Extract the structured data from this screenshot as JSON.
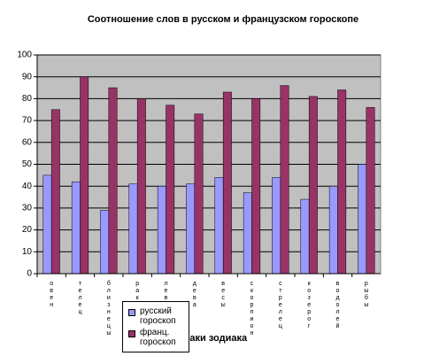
{
  "chart_data": {
    "type": "bar",
    "title": "Соотношение слов в русском и французском гороскопе",
    "x_label": "Знаки зодиака",
    "categories": [
      "овен",
      "телец",
      "близнецы",
      "рак",
      "лев",
      "дева",
      "весы",
      "скорпион",
      "стрелец",
      "козерог",
      "водолей",
      "рыбы"
    ],
    "series": [
      {
        "name": "русский гороскоп",
        "color": "#9999ff",
        "values": [
          45,
          42,
          29,
          41,
          40,
          41,
          44,
          37,
          44,
          34,
          40,
          50
        ]
      },
      {
        "name": "франц. гороскоп",
        "color": "#993366",
        "values": [
          75,
          90,
          85,
          80,
          77,
          73,
          83,
          80,
          86,
          81,
          84,
          76
        ]
      }
    ],
    "ylim": [
      0,
      100
    ],
    "yticks": [
      0,
      10,
      20,
      30,
      40,
      50,
      60,
      70,
      80,
      90,
      100
    ],
    "grid": true,
    "plot_background": "#c0c0c0"
  }
}
